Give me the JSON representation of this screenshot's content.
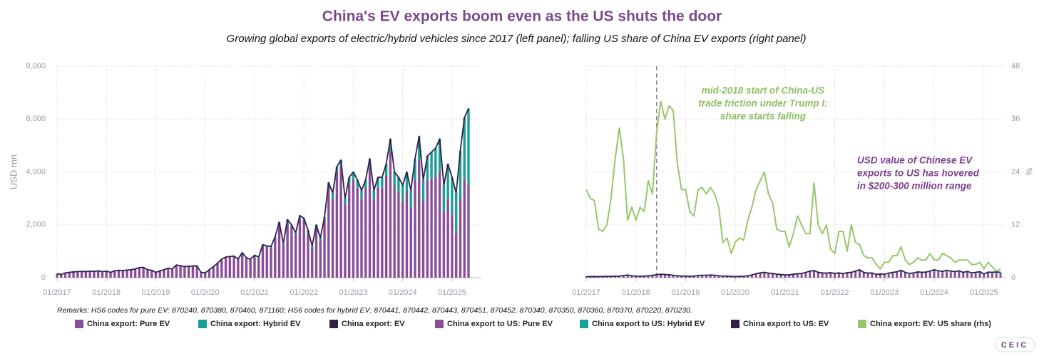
{
  "title": "China's EV exports boom even as the US shuts the door",
  "subtitle": "Growing global exports of electric/hybrid vehicles since 2017 (left panel); falling US share of China EV exports (right panel)",
  "remarks": "Remarks: HS6 codes for pure EV: 870240, 870380, 870460, 871160; HS6 codes for hybrid EV: 870441, 870442, 870443, 870451, 870452, 870340, 870350, 870360, 870370, 870220, 870230.",
  "logo": "CEIC",
  "chart_data": [
    {
      "type": "bar",
      "stacked": true,
      "ylabel": "USD mn",
      "grid": true,
      "ylim": [
        0,
        8000
      ],
      "yticks": [
        0,
        {
          "value": 2000,
          "label": "2,000"
        },
        {
          "value": 4000,
          "label": "4,000"
        },
        {
          "value": 6000,
          "label": "6,000"
        },
        {
          "value": 8000,
          "label": "8,000"
        }
      ],
      "categories": [
        "01/2017",
        null,
        null,
        null,
        null,
        null,
        null,
        null,
        null,
        null,
        null,
        null,
        "01/2018",
        null,
        null,
        null,
        null,
        null,
        null,
        null,
        null,
        null,
        null,
        null,
        "01/2019",
        null,
        null,
        null,
        null,
        null,
        null,
        null,
        null,
        null,
        null,
        null,
        "01/2020",
        null,
        null,
        null,
        null,
        null,
        null,
        null,
        null,
        null,
        null,
        null,
        "01/2021",
        null,
        null,
        null,
        null,
        null,
        null,
        null,
        null,
        null,
        null,
        null,
        "01/2022",
        null,
        null,
        null,
        null,
        null,
        null,
        null,
        null,
        null,
        null,
        null,
        "01/2023",
        null,
        null,
        null,
        null,
        null,
        null,
        null,
        null,
        null,
        null,
        null,
        "01/2024",
        null,
        null,
        null,
        null,
        null,
        null,
        null,
        null,
        null,
        null,
        null,
        "01/2025",
        null,
        null,
        null,
        null
      ],
      "series": [
        {
          "name": "China export: Pure EV",
          "type": "bar",
          "color": "#8a4c9b",
          "values": [
            145,
            115,
            175,
            195,
            215,
            225,
            235,
            225,
            245,
            235,
            255,
            225,
            240,
            190,
            250,
            270,
            260,
            280,
            290,
            320,
            370,
            380,
            290,
            270,
            190,
            250,
            290,
            350,
            320,
            470,
            440,
            410,
            420,
            430,
            440,
            190,
            160,
            280,
            400,
            530,
            680,
            760,
            780,
            800,
            680,
            930,
            730,
            680,
            820,
            750,
            1210,
            1160,
            1130,
            1500,
            2040,
            1240,
            2140,
            1930,
            1630,
            2270,
            2170,
            1720,
            1120,
            1900,
            1400,
            2180,
            3450,
            3020,
            4000,
            4230,
            2780,
            3550,
            3720,
            3400,
            3000,
            3380,
            4150,
            3000,
            3400,
            3400,
            3850,
            4750,
            3500,
            3250,
            2900,
            3300,
            2650,
            3700,
            4450,
            2900,
            3700,
            3750,
            3800,
            4050,
            2500,
            3000,
            2400,
            1700,
            3000,
            3750,
            3500
          ]
        },
        {
          "name": "China export: Hybrid EV",
          "type": "bar",
          "color": "#17a096",
          "values": [
            5,
            5,
            5,
            5,
            5,
            5,
            5,
            5,
            5,
            5,
            5,
            5,
            10,
            10,
            10,
            10,
            10,
            10,
            10,
            10,
            10,
            10,
            10,
            10,
            10,
            10,
            10,
            10,
            10,
            10,
            10,
            10,
            10,
            10,
            10,
            10,
            20,
            20,
            20,
            20,
            20,
            20,
            20,
            20,
            20,
            20,
            20,
            20,
            30,
            30,
            40,
            40,
            50,
            50,
            60,
            60,
            60,
            70,
            70,
            80,
            80,
            80,
            80,
            100,
            100,
            120,
            150,
            180,
            200,
            220,
            220,
            250,
            280,
            300,
            300,
            320,
            350,
            300,
            400,
            400,
            450,
            500,
            500,
            550,
            600,
            700,
            650,
            800,
            900,
            800,
            900,
            1000,
            1100,
            1200,
            1000,
            1300,
            1400,
            1500,
            1800,
            2300,
            2900
          ]
        },
        {
          "name": "China export: EV",
          "type": "line",
          "color": "#2f2148",
          "values": [
            150,
            120,
            180,
            200,
            220,
            230,
            240,
            230,
            250,
            240,
            260,
            230,
            250,
            200,
            260,
            280,
            270,
            290,
            300,
            330,
            380,
            390,
            300,
            280,
            200,
            260,
            300,
            360,
            330,
            480,
            450,
            420,
            430,
            440,
            450,
            200,
            180,
            300,
            420,
            550,
            700,
            780,
            800,
            820,
            700,
            950,
            750,
            700,
            850,
            780,
            1250,
            1200,
            1180,
            1550,
            2100,
            1300,
            2200,
            2000,
            1700,
            2350,
            2250,
            1800,
            1200,
            2000,
            1500,
            2300,
            3600,
            3200,
            4200,
            4450,
            3000,
            3800,
            4000,
            3700,
            3300,
            3700,
            4500,
            3300,
            3800,
            3800,
            4300,
            5250,
            4000,
            3800,
            3500,
            4000,
            3300,
            4500,
            5350,
            3700,
            4600,
            4750,
            4900,
            5250,
            3500,
            4300,
            3800,
            3200,
            4800,
            6050,
            6400
          ]
        }
      ]
    },
    {
      "type": "line",
      "stacked": true,
      "y2label": "%",
      "grid": true,
      "ylim": [
        0,
        8000
      ],
      "y2lim": [
        0,
        48
      ],
      "y2ticks": [
        0,
        12,
        24,
        36,
        48
      ],
      "categories": [
        "01/2017",
        null,
        null,
        null,
        null,
        null,
        null,
        null,
        null,
        null,
        null,
        null,
        "01/2018",
        null,
        null,
        null,
        null,
        null,
        null,
        null,
        null,
        null,
        null,
        null,
        "01/2019",
        null,
        null,
        null,
        null,
        null,
        null,
        null,
        null,
        null,
        null,
        null,
        "01/2020",
        null,
        null,
        null,
        null,
        null,
        null,
        null,
        null,
        null,
        null,
        null,
        "01/2021",
        null,
        null,
        null,
        null,
        null,
        null,
        null,
        null,
        null,
        null,
        null,
        "01/2022",
        null,
        null,
        null,
        null,
        null,
        null,
        null,
        null,
        null,
        null,
        null,
        "01/2023",
        null,
        null,
        null,
        null,
        null,
        null,
        null,
        null,
        null,
        null,
        null,
        "01/2024",
        null,
        null,
        null,
        null,
        null,
        null,
        null,
        null,
        null,
        null,
        null,
        "01/2025",
        null,
        null,
        null,
        null
      ],
      "annotations": [
        {
          "lines": [
            "mid-2018 start of China-US",
            "trade friction under Trump I:",
            "share starts falling"
          ],
          "color": "#8cc063"
        },
        {
          "lines": [
            "USD value of Chinese EV",
            "exports to US has hovered",
            "in $200-300 million range"
          ],
          "color": "#7d3f8e"
        }
      ],
      "series": [
        {
          "name": "China export to US: Pure EV",
          "type": "bar",
          "color": "#8a4c9b",
          "values": [
            40,
            40,
            45,
            40,
            45,
            50,
            50,
            55,
            60,
            80,
            100,
            70,
            60,
            50,
            60,
            70,
            90,
            110,
            130,
            120,
            110,
            90,
            70,
            60,
            60,
            50,
            60,
            80,
            90,
            90,
            100,
            90,
            70,
            60,
            60,
            50,
            40,
            50,
            50,
            70,
            100,
            150,
            180,
            200,
            170,
            160,
            130,
            120,
            90,
            100,
            120,
            140,
            150,
            190,
            240,
            260,
            190,
            170,
            160,
            180,
            140,
            160,
            130,
            170,
            180,
            230,
            280,
            180,
            150,
            160,
            100,
            120,
            100,
            140,
            170,
            190,
            250,
            170,
            130,
            150,
            190,
            170,
            180,
            220,
            260,
            220,
            200,
            240,
            210,
            190,
            220,
            160,
            200,
            140,
            160,
            190,
            90,
            160,
            150,
            170,
            150
          ]
        },
        {
          "name": "China export to US: Hybrid EV",
          "type": "bar",
          "color": "#17a096",
          "values": [
            0,
            0,
            0,
            0,
            0,
            0,
            0,
            0,
            0,
            0,
            0,
            0,
            0,
            0,
            0,
            0,
            0,
            0,
            0,
            0,
            0,
            0,
            0,
            0,
            0,
            0,
            0,
            0,
            0,
            0,
            0,
            0,
            0,
            0,
            0,
            0,
            0,
            0,
            0,
            0,
            0,
            0,
            0,
            0,
            0,
            0,
            0,
            0,
            10,
            10,
            10,
            10,
            10,
            10,
            10,
            10,
            10,
            10,
            10,
            10,
            20,
            20,
            20,
            20,
            20,
            20,
            20,
            20,
            20,
            20,
            20,
            20,
            30,
            30,
            30,
            30,
            30,
            30,
            30,
            30,
            30,
            30,
            30,
            30,
            40,
            40,
            40,
            40,
            40,
            40,
            40,
            40,
            40,
            40,
            40,
            40,
            50,
            50,
            50,
            50,
            50
          ]
        },
        {
          "name": "China export to US: EV",
          "type": "line",
          "color": "#2f2148",
          "values": [
            40,
            40,
            45,
            40,
            45,
            50,
            50,
            55,
            60,
            80,
            100,
            70,
            60,
            50,
            60,
            70,
            90,
            110,
            130,
            120,
            110,
            90,
            70,
            60,
            60,
            50,
            60,
            80,
            90,
            90,
            100,
            90,
            70,
            60,
            60,
            50,
            40,
            50,
            50,
            70,
            100,
            150,
            180,
            200,
            170,
            160,
            130,
            120,
            100,
            110,
            130,
            150,
            160,
            200,
            250,
            270,
            200,
            180,
            170,
            190,
            160,
            180,
            150,
            190,
            200,
            250,
            300,
            200,
            170,
            180,
            120,
            140,
            130,
            170,
            200,
            220,
            280,
            200,
            160,
            180,
            220,
            200,
            210,
            250,
            300,
            260,
            240,
            280,
            250,
            230,
            260,
            200,
            240,
            180,
            200,
            230,
            140,
            210,
            200,
            220,
            200
          ]
        },
        {
          "name": "China export: EV: US share (rhs)",
          "type": "line",
          "axis": "y2",
          "color": "#98c66b",
          "values": [
            20,
            18,
            17.5,
            11,
            10.5,
            12,
            18,
            27,
            34,
            27,
            13,
            16,
            13,
            16,
            15,
            22,
            19,
            33,
            40,
            36,
            39,
            38,
            26,
            20,
            20,
            15,
            14,
            20,
            20.5,
            19,
            20.5,
            19,
            16,
            8,
            9,
            5.5,
            8,
            9,
            8.5,
            13,
            16,
            20,
            22,
            24,
            19,
            17,
            11,
            10.5,
            10.5,
            7,
            10,
            14,
            12,
            10,
            10,
            21.5,
            12,
            10,
            12,
            6.5,
            5.5,
            10.5,
            10.5,
            6,
            12,
            8,
            7.5,
            5,
            4.5,
            4.5,
            3,
            2,
            3.5,
            3.5,
            5,
            5,
            7,
            4,
            3,
            3.5,
            4.5,
            4,
            4,
            5.5,
            4,
            4,
            5.5,
            5,
            4.5,
            3.5,
            4,
            4,
            4,
            3,
            3,
            3.5,
            2,
            3.5,
            2.5,
            1.5,
            2
          ]
        }
      ]
    }
  ]
}
